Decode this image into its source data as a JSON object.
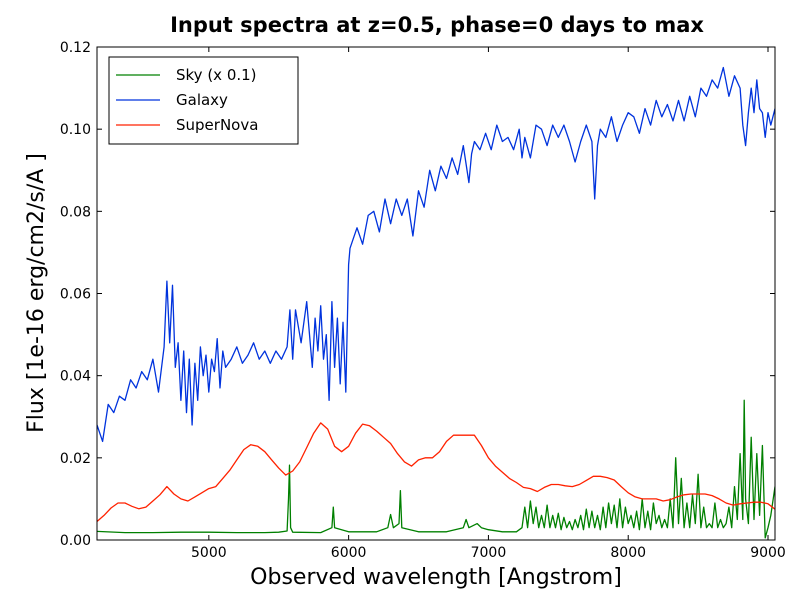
{
  "chart_data": {
    "type": "line",
    "title": "Input spectra at z=0.5, phase=0 days to max",
    "xlabel": "Observed wavelength [Angstrom]",
    "ylabel": "Flux [1e-16 erg/cm2/s/A ]",
    "xlim": [
      4200,
      9050
    ],
    "ylim": [
      0.0,
      0.12
    ],
    "xticks": [
      5000,
      6000,
      7000,
      8000,
      9000
    ],
    "xtick_labels": [
      "5000",
      "6000",
      "7000",
      "8000",
      "9000"
    ],
    "yticks": [
      0.0,
      0.02,
      0.04,
      0.06,
      0.08,
      0.1,
      0.12
    ],
    "ytick_labels": [
      "0.00",
      "0.02",
      "0.04",
      "0.06",
      "0.08",
      "0.10",
      "0.12"
    ],
    "legend_position": "top-left",
    "grid": false,
    "series": [
      {
        "name": "Sky (x 0.1)",
        "color": "#008000",
        "x": [
          4200,
          4400,
          4600,
          4800,
          5000,
          5200,
          5400,
          5500,
          5560,
          5570,
          5577,
          5585,
          5600,
          5800,
          5880,
          5890,
          5900,
          6000,
          6200,
          6280,
          6300,
          6320,
          6360,
          6370,
          6380,
          6500,
          6700,
          6820,
          6840,
          6860,
          6920,
          6950,
          7000,
          7100,
          7200,
          7240,
          7260,
          7280,
          7300,
          7320,
          7340,
          7360,
          7380,
          7400,
          7420,
          7440,
          7460,
          7480,
          7500,
          7520,
          7540,
          7560,
          7580,
          7600,
          7620,
          7640,
          7660,
          7680,
          7700,
          7720,
          7740,
          7760,
          7780,
          7800,
          7820,
          7840,
          7860,
          7880,
          7900,
          7920,
          7940,
          7960,
          7980,
          8000,
          8020,
          8040,
          8060,
          8080,
          8100,
          8120,
          8140,
          8160,
          8180,
          8200,
          8220,
          8240,
          8260,
          8280,
          8300,
          8320,
          8340,
          8360,
          8380,
          8400,
          8420,
          8440,
          8460,
          8480,
          8500,
          8520,
          8540,
          8560,
          8580,
          8600,
          8620,
          8640,
          8660,
          8680,
          8700,
          8720,
          8740,
          8760,
          8780,
          8800,
          8820,
          8830,
          8840,
          8860,
          8880,
          8900,
          8920,
          8940,
          8960,
          8980,
          9000,
          9020,
          9050
        ],
        "y": [
          0.0021,
          0.0018,
          0.0018,
          0.0019,
          0.0019,
          0.0018,
          0.0018,
          0.0019,
          0.0022,
          0.01,
          0.0182,
          0.003,
          0.0019,
          0.0018,
          0.003,
          0.008,
          0.003,
          0.002,
          0.002,
          0.003,
          0.0062,
          0.003,
          0.004,
          0.012,
          0.003,
          0.002,
          0.002,
          0.003,
          0.005,
          0.003,
          0.004,
          0.003,
          0.0025,
          0.002,
          0.002,
          0.003,
          0.008,
          0.003,
          0.0095,
          0.004,
          0.008,
          0.003,
          0.006,
          0.003,
          0.0085,
          0.003,
          0.006,
          0.003,
          0.0065,
          0.0025,
          0.0055,
          0.003,
          0.0045,
          0.0025,
          0.005,
          0.003,
          0.006,
          0.0025,
          0.0075,
          0.003,
          0.007,
          0.003,
          0.006,
          0.0025,
          0.008,
          0.003,
          0.009,
          0.004,
          0.0085,
          0.003,
          0.01,
          0.003,
          0.008,
          0.004,
          0.006,
          0.003,
          0.007,
          0.0025,
          0.01,
          0.003,
          0.007,
          0.0025,
          0.009,
          0.004,
          0.006,
          0.003,
          0.005,
          0.003,
          0.01,
          0.003,
          0.02,
          0.004,
          0.015,
          0.003,
          0.009,
          0.003,
          0.011,
          0.004,
          0.016,
          0.003,
          0.008,
          0.003,
          0.004,
          0.003,
          0.009,
          0.003,
          0.005,
          0.003,
          0.004,
          0.008,
          0.003,
          0.013,
          0.005,
          0.021,
          0.005,
          0.034,
          0.01,
          0.004,
          0.025,
          0.005,
          0.021,
          0.006,
          0.023,
          0.0005,
          0.003,
          0.006,
          0.013
        ]
      },
      {
        "name": "Galaxy",
        "color": "#0033dd",
        "x": [
          4200,
          4240,
          4280,
          4320,
          4360,
          4400,
          4440,
          4480,
          4520,
          4560,
          4600,
          4640,
          4680,
          4700,
          4720,
          4740,
          4760,
          4780,
          4800,
          4820,
          4840,
          4860,
          4880,
          4900,
          4920,
          4940,
          4960,
          4980,
          5000,
          5020,
          5040,
          5060,
          5080,
          5100,
          5120,
          5160,
          5200,
          5240,
          5280,
          5320,
          5360,
          5400,
          5440,
          5480,
          5520,
          5560,
          5580,
          5600,
          5620,
          5660,
          5700,
          5740,
          5760,
          5780,
          5800,
          5820,
          5840,
          5860,
          5880,
          5900,
          5920,
          5940,
          5960,
          5980,
          6000,
          6010,
          6030,
          6060,
          6100,
          6140,
          6180,
          6220,
          6260,
          6300,
          6340,
          6380,
          6420,
          6460,
          6500,
          6540,
          6580,
          6620,
          6660,
          6700,
          6740,
          6780,
          6820,
          6860,
          6880,
          6900,
          6940,
          6980,
          7020,
          7060,
          7100,
          7140,
          7180,
          7220,
          7240,
          7260,
          7300,
          7340,
          7380,
          7420,
          7460,
          7500,
          7540,
          7580,
          7620,
          7660,
          7700,
          7740,
          7760,
          7780,
          7800,
          7840,
          7880,
          7920,
          7960,
          8000,
          8040,
          8080,
          8120,
          8160,
          8200,
          8240,
          8280,
          8320,
          8360,
          8400,
          8440,
          8480,
          8520,
          8560,
          8600,
          8640,
          8680,
          8720,
          8760,
          8800,
          8820,
          8840,
          8860,
          8880,
          8900,
          8920,
          8940,
          8960,
          8980,
          9000,
          9020,
          9050
        ],
        "y": [
          0.028,
          0.024,
          0.033,
          0.031,
          0.035,
          0.034,
          0.039,
          0.037,
          0.041,
          0.039,
          0.044,
          0.036,
          0.047,
          0.063,
          0.048,
          0.062,
          0.042,
          0.048,
          0.034,
          0.046,
          0.031,
          0.044,
          0.028,
          0.043,
          0.034,
          0.047,
          0.04,
          0.045,
          0.036,
          0.044,
          0.041,
          0.049,
          0.037,
          0.046,
          0.042,
          0.044,
          0.047,
          0.043,
          0.045,
          0.048,
          0.044,
          0.046,
          0.043,
          0.046,
          0.044,
          0.047,
          0.056,
          0.044,
          0.056,
          0.048,
          0.058,
          0.042,
          0.054,
          0.046,
          0.057,
          0.044,
          0.05,
          0.034,
          0.058,
          0.042,
          0.054,
          0.038,
          0.053,
          0.036,
          0.067,
          0.071,
          0.073,
          0.076,
          0.072,
          0.079,
          0.08,
          0.075,
          0.083,
          0.077,
          0.083,
          0.079,
          0.083,
          0.074,
          0.085,
          0.081,
          0.09,
          0.085,
          0.091,
          0.088,
          0.093,
          0.089,
          0.096,
          0.087,
          0.094,
          0.097,
          0.095,
          0.099,
          0.095,
          0.101,
          0.097,
          0.098,
          0.095,
          0.1,
          0.093,
          0.098,
          0.093,
          0.101,
          0.1,
          0.096,
          0.101,
          0.098,
          0.101,
          0.097,
          0.092,
          0.097,
          0.101,
          0.097,
          0.083,
          0.096,
          0.1,
          0.098,
          0.103,
          0.097,
          0.101,
          0.104,
          0.103,
          0.099,
          0.105,
          0.101,
          0.107,
          0.103,
          0.106,
          0.102,
          0.107,
          0.102,
          0.108,
          0.103,
          0.11,
          0.108,
          0.112,
          0.11,
          0.115,
          0.108,
          0.113,
          0.11,
          0.101,
          0.096,
          0.104,
          0.11,
          0.104,
          0.112,
          0.105,
          0.104,
          0.098,
          0.104,
          0.101,
          0.105
        ]
      },
      {
        "name": "SuperNova",
        "color": "#ff2200",
        "x": [
          4200,
          4250,
          4300,
          4350,
          4400,
          4450,
          4500,
          4550,
          4600,
          4650,
          4700,
          4750,
          4800,
          4850,
          4900,
          4950,
          5000,
          5050,
          5100,
          5150,
          5200,
          5250,
          5300,
          5350,
          5400,
          5450,
          5500,
          5550,
          5600,
          5650,
          5700,
          5750,
          5800,
          5850,
          5900,
          5950,
          6000,
          6050,
          6100,
          6150,
          6200,
          6250,
          6300,
          6350,
          6400,
          6450,
          6500,
          6550,
          6600,
          6650,
          6700,
          6750,
          6800,
          6850,
          6900,
          6950,
          7000,
          7050,
          7100,
          7150,
          7200,
          7250,
          7300,
          7350,
          7400,
          7450,
          7500,
          7550,
          7600,
          7650,
          7700,
          7750,
          7800,
          7850,
          7900,
          7950,
          8000,
          8050,
          8100,
          8150,
          8200,
          8250,
          8300,
          8350,
          8400,
          8450,
          8500,
          8550,
          8600,
          8650,
          8700,
          8750,
          8800,
          8850,
          8900,
          8950,
          9000,
          9050
        ],
        "y": [
          0.0045,
          0.006,
          0.0078,
          0.009,
          0.009,
          0.0082,
          0.0076,
          0.008,
          0.0095,
          0.011,
          0.013,
          0.0112,
          0.01,
          0.0095,
          0.0105,
          0.0115,
          0.0125,
          0.013,
          0.015,
          0.017,
          0.0195,
          0.022,
          0.0232,
          0.0228,
          0.0215,
          0.0195,
          0.0175,
          0.0158,
          0.0168,
          0.019,
          0.0225,
          0.026,
          0.0285,
          0.027,
          0.0228,
          0.0215,
          0.0228,
          0.026,
          0.0282,
          0.0278,
          0.0265,
          0.025,
          0.0235,
          0.021,
          0.019,
          0.018,
          0.0195,
          0.02,
          0.02,
          0.0215,
          0.024,
          0.0255,
          0.0255,
          0.0255,
          0.0255,
          0.023,
          0.02,
          0.018,
          0.0165,
          0.015,
          0.014,
          0.0128,
          0.0125,
          0.0118,
          0.0128,
          0.0135,
          0.0135,
          0.0132,
          0.013,
          0.0135,
          0.0145,
          0.0155,
          0.0155,
          0.0152,
          0.0146,
          0.013,
          0.0115,
          0.0105,
          0.01,
          0.01,
          0.01,
          0.0095,
          0.0098,
          0.0105,
          0.011,
          0.0112,
          0.0112,
          0.0112,
          0.0108,
          0.01,
          0.009,
          0.0085,
          0.0088,
          0.009,
          0.0092,
          0.0092,
          0.0088,
          0.0075
        ]
      }
    ]
  }
}
